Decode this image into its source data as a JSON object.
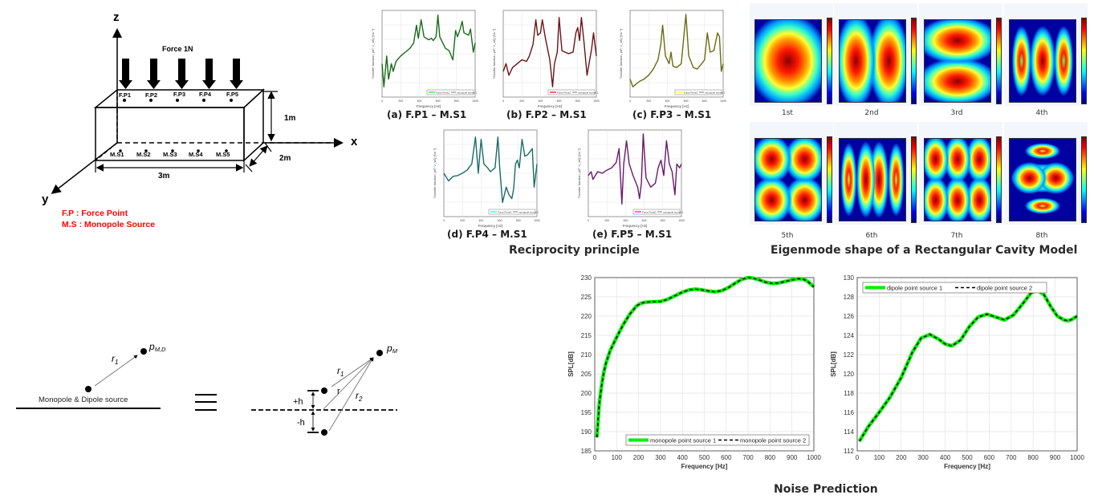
{
  "box_diagram": {
    "axes": {
      "z": "z",
      "x": "x",
      "y": "y"
    },
    "force_label": "Force 1N",
    "force_points": [
      "F.P1",
      "F.P2",
      "F.P3",
      "F.P4",
      "F.P5"
    ],
    "monopole_sources": [
      "M.S1",
      "M.S2",
      "M.S3",
      "M.S4",
      "M.S5"
    ],
    "dimensions": {
      "height": "1m",
      "depth": "2m",
      "length": "3m"
    },
    "legend": [
      "F.P : Force Point",
      "M.S : Monopole Source"
    ],
    "legend_color": "#ff0000"
  },
  "reciprocity": {
    "title": "Reciprocity principle",
    "charts": [
      {
        "caption": "(a) F.P1 – M.S1",
        "color": "#1a6b1a",
        "legend_color": "#33ff33",
        "legend": [
          "Force Point1",
          "monopole source 1"
        ]
      },
      {
        "caption": "(b) F.P2 – M.S1",
        "color": "#6b1414",
        "legend_color": "#ff3333",
        "legend": [
          "Force Point2",
          "monopole source 1"
        ]
      },
      {
        "caption": "(c) F.P3 – M.S1",
        "color": "#6b6b10",
        "legend_color": "#ffff33",
        "legend": [
          "Force Point3",
          "monopole source 1"
        ]
      },
      {
        "caption": "(d) F.P4 – M.S1",
        "color": "#1a6b6b",
        "legend_color": "#33ffff",
        "legend": [
          "Force Point4",
          "monopole source 1"
        ]
      },
      {
        "caption": "(e) F.P5 – M.S1",
        "color": "#6b1a6b",
        "legend_color": "#ff33ff",
        "legend": [
          "Force Point5",
          "monopole source 1"
        ]
      }
    ],
    "xlabel": "Frequency [Hz]",
    "ylabel": "Transfer function, p/F, V_s/Q [Ns⁻¹]",
    "xticks": [
      "0",
      "200",
      "400",
      "600",
      "800",
      "1000"
    ]
  },
  "eigenmodes": {
    "title": "Eigenmode shape of a Rectangular Cavity Model",
    "modes": [
      "1st",
      "2nd",
      "3rd",
      "4th",
      "5th",
      "6th",
      "7th",
      "8th"
    ]
  },
  "source_diagram": {
    "left_label": "Monopole & Dipole source",
    "left_point_label": "p",
    "left_point_sub": "M,D",
    "left_r": "r",
    "left_r_sub": "1",
    "equiv_symbol": "≡",
    "right_point_label": "p",
    "right_point_sub": "M",
    "r1": "r",
    "r1_sub": "1",
    "r": "r",
    "r2": "r",
    "r2_sub": "2",
    "plus_h": "+h",
    "minus_h": "-h"
  },
  "noise_prediction": {
    "title": "Noise Prediction"
  },
  "chart_data": [
    {
      "type": "line",
      "title": "",
      "xlabel": "Frequency [Hz]",
      "ylabel": "SPL[dB]",
      "xlim": [
        0,
        1000
      ],
      "ylim": [
        185,
        230
      ],
      "xticks": [
        0,
        100,
        200,
        300,
        400,
        500,
        600,
        700,
        800,
        900,
        1000
      ],
      "yticks": [
        185,
        190,
        195,
        200,
        205,
        210,
        215,
        220,
        225,
        230
      ],
      "grid": true,
      "legend_position": "bottom-right",
      "x": [
        10,
        20,
        30,
        40,
        50,
        70,
        100,
        130,
        160,
        190,
        210,
        230,
        260,
        300,
        330,
        360,
        400,
        430,
        460,
        490,
        520,
        550,
        580,
        610,
        640,
        670,
        700,
        720,
        750,
        780,
        810,
        840,
        870,
        900,
        930,
        950,
        970,
        1000
      ],
      "series": [
        {
          "name": "monopole point source 1",
          "color": "#00ee00",
          "style": "solid",
          "values": [
            188.5,
            197,
            201.5,
            205,
            207.5,
            211,
            214.5,
            217.8,
            220.5,
            222.6,
            223.3,
            223.6,
            223.7,
            223.8,
            224.3,
            225.1,
            226.2,
            226.8,
            227.0,
            226.8,
            226.5,
            226.3,
            226.6,
            227.4,
            228.5,
            229.5,
            230.0,
            229.9,
            229.4,
            228.8,
            228.5,
            228.6,
            229.0,
            229.4,
            229.7,
            229.6,
            229.1,
            227.6
          ]
        },
        {
          "name": "monopole point source 2",
          "color": "#000000",
          "style": "dashed",
          "values": [
            188.5,
            197,
            201.5,
            205,
            207.5,
            211,
            214.5,
            217.8,
            220.5,
            222.6,
            223.3,
            223.6,
            223.7,
            223.8,
            224.3,
            225.1,
            226.2,
            226.8,
            227.0,
            226.8,
            226.5,
            226.3,
            226.6,
            227.4,
            228.5,
            229.5,
            230.0,
            229.9,
            229.4,
            228.8,
            228.5,
            228.6,
            229.0,
            229.4,
            229.7,
            229.6,
            229.1,
            227.6
          ]
        }
      ]
    },
    {
      "type": "line",
      "title": "",
      "xlabel": "Frequency [Hz]",
      "ylabel": "SPL[dB]",
      "xlim": [
        0,
        1000
      ],
      "ylim": [
        112,
        130
      ],
      "xticks": [
        0,
        100,
        200,
        300,
        400,
        500,
        600,
        700,
        800,
        900,
        1000
      ],
      "yticks": [
        112,
        114,
        116,
        118,
        120,
        122,
        124,
        126,
        128,
        130
      ],
      "grid": true,
      "legend_position": "top-left",
      "x": [
        10,
        50,
        100,
        150,
        200,
        250,
        290,
        330,
        370,
        400,
        430,
        470,
        510,
        550,
        590,
        630,
        670,
        710,
        750,
        790,
        820,
        850,
        880,
        910,
        940,
        960,
        980,
        1000
      ],
      "series": [
        {
          "name": "dipole point source 1",
          "color": "#00ee00",
          "style": "solid",
          "values": [
            113.0,
            114.5,
            116.0,
            117.6,
            119.6,
            122.2,
            123.7,
            124.1,
            123.6,
            123.1,
            122.9,
            123.5,
            124.9,
            125.9,
            126.2,
            125.9,
            125.6,
            126.1,
            127.2,
            128.4,
            128.7,
            128.2,
            127.0,
            126.0,
            125.6,
            125.5,
            125.7,
            126.0
          ]
        },
        {
          "name": "dipole point source 2",
          "color": "#000000",
          "style": "dashed",
          "values": [
            113.0,
            114.5,
            116.0,
            117.6,
            119.6,
            122.2,
            123.7,
            124.1,
            123.6,
            123.1,
            122.9,
            123.5,
            124.9,
            125.9,
            126.2,
            125.9,
            125.6,
            126.1,
            127.2,
            128.4,
            128.7,
            128.2,
            127.0,
            126.0,
            125.6,
            125.5,
            125.7,
            126.0
          ]
        }
      ]
    }
  ]
}
